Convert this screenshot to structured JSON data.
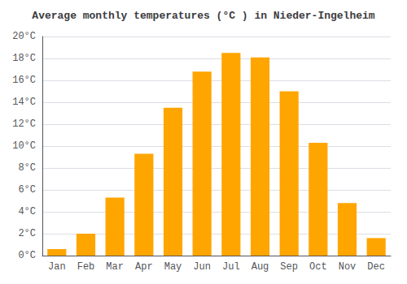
{
  "chart_data": {
    "type": "bar",
    "title": "Average monthly temperatures (°C ) in Nieder-Ingelheim",
    "categories": [
      "Jan",
      "Feb",
      "Mar",
      "Apr",
      "May",
      "Jun",
      "Jul",
      "Aug",
      "Sep",
      "Oct",
      "Nov",
      "Dec"
    ],
    "values": [
      0.6,
      2.0,
      5.3,
      9.3,
      13.5,
      16.8,
      18.5,
      18.1,
      15.0,
      10.3,
      4.8,
      1.6
    ],
    "color": "#FFA500",
    "ylim": [
      0,
      20
    ],
    "yticks": [
      {
        "value": 0,
        "label": "0°C"
      },
      {
        "value": 2,
        "label": "2°C"
      },
      {
        "value": 4,
        "label": "4°C"
      },
      {
        "value": 6,
        "label": "6°C"
      },
      {
        "value": 8,
        "label": "8°C"
      },
      {
        "value": 10,
        "label": "10°C"
      },
      {
        "value": 12,
        "label": "12°C"
      },
      {
        "value": 14,
        "label": "14°C"
      },
      {
        "value": 16,
        "label": "16°C"
      },
      {
        "value": 18,
        "label": "18°C"
      },
      {
        "value": 20,
        "label": "20°C"
      }
    ],
    "grid": true
  }
}
